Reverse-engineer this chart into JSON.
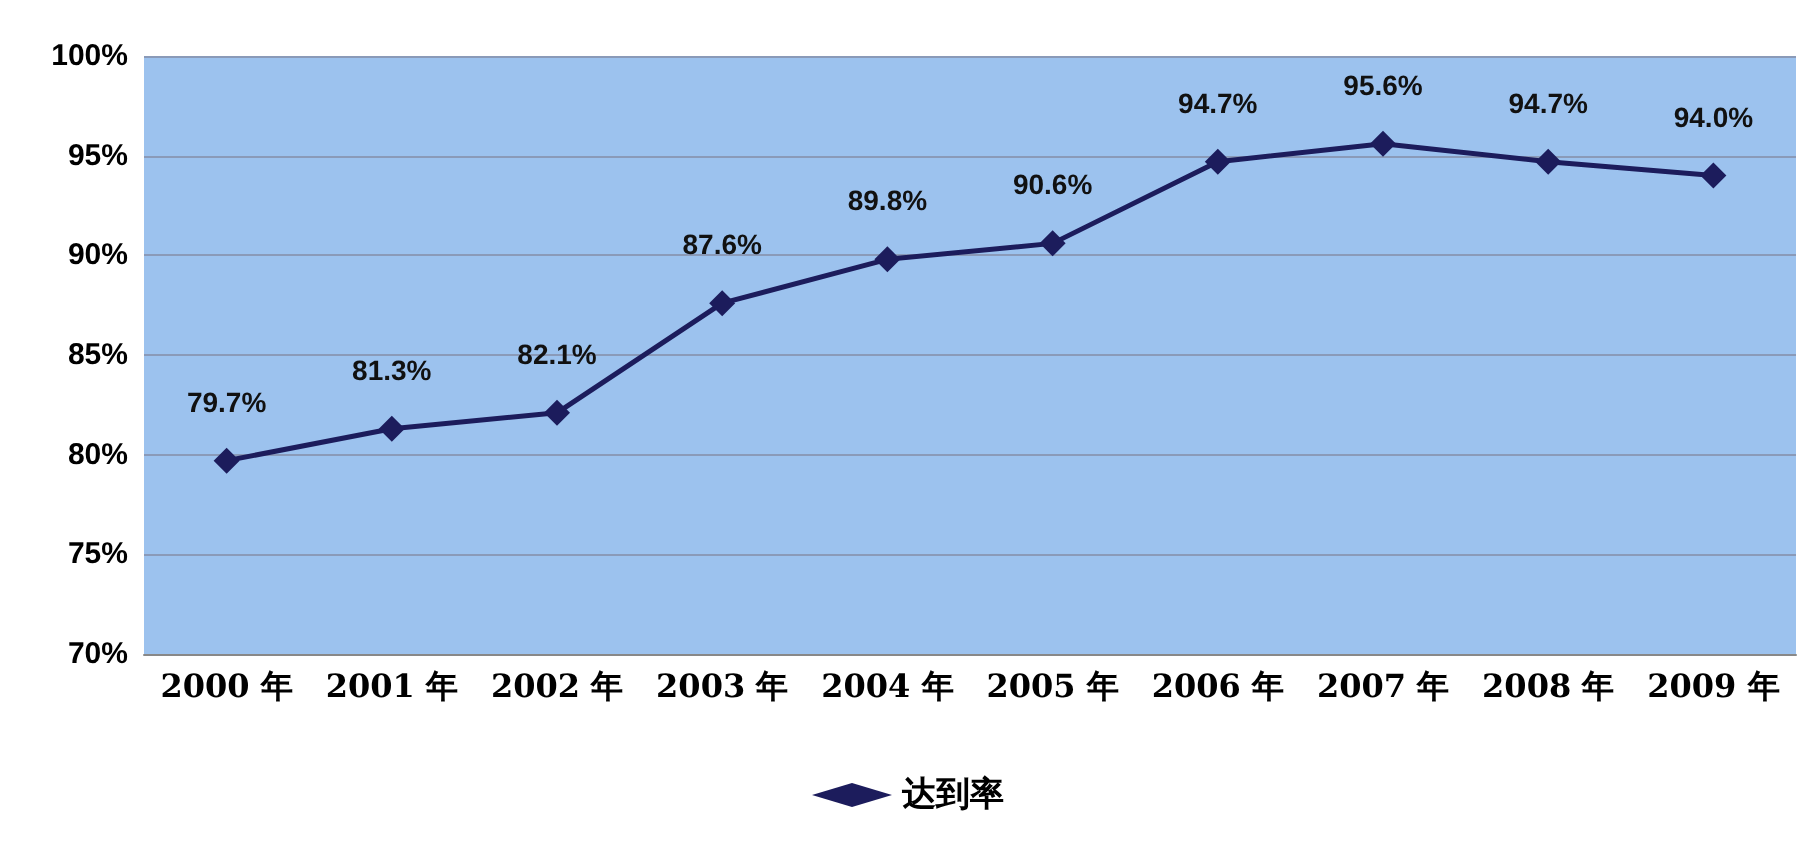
{
  "chart_data": {
    "type": "line",
    "categories": [
      "2000 年",
      "2001 年",
      "2002 年",
      "2003 年",
      "2004 年",
      "2005 年",
      "2006 年",
      "2007 年",
      "2008 年",
      "2009 年"
    ],
    "series": [
      {
        "name": "达到率",
        "color": "#1c1c5c",
        "values": [
          79.7,
          81.3,
          82.1,
          87.6,
          89.8,
          90.6,
          94.7,
          95.6,
          94.7,
          94.0
        ],
        "value_labels": [
          "79.7%",
          "81.3%",
          "82.1%",
          "87.6%",
          "89.8%",
          "90.6%",
          "94.7%",
          "95.6%",
          "94.7%",
          "94.0%"
        ]
      }
    ],
    "ylim": [
      70,
      100
    ],
    "yticks": [
      {
        "value": 70,
        "label": "70%"
      },
      {
        "value": 75,
        "label": "75%"
      },
      {
        "value": 80,
        "label": "80%"
      },
      {
        "value": 85,
        "label": "85%"
      },
      {
        "value": 90,
        "label": "90%"
      },
      {
        "value": 95,
        "label": "95%"
      },
      {
        "value": 100,
        "label": "100%"
      }
    ],
    "grid": "y",
    "legend": "bottom",
    "marker": "diamond",
    "line_style": "solid"
  }
}
